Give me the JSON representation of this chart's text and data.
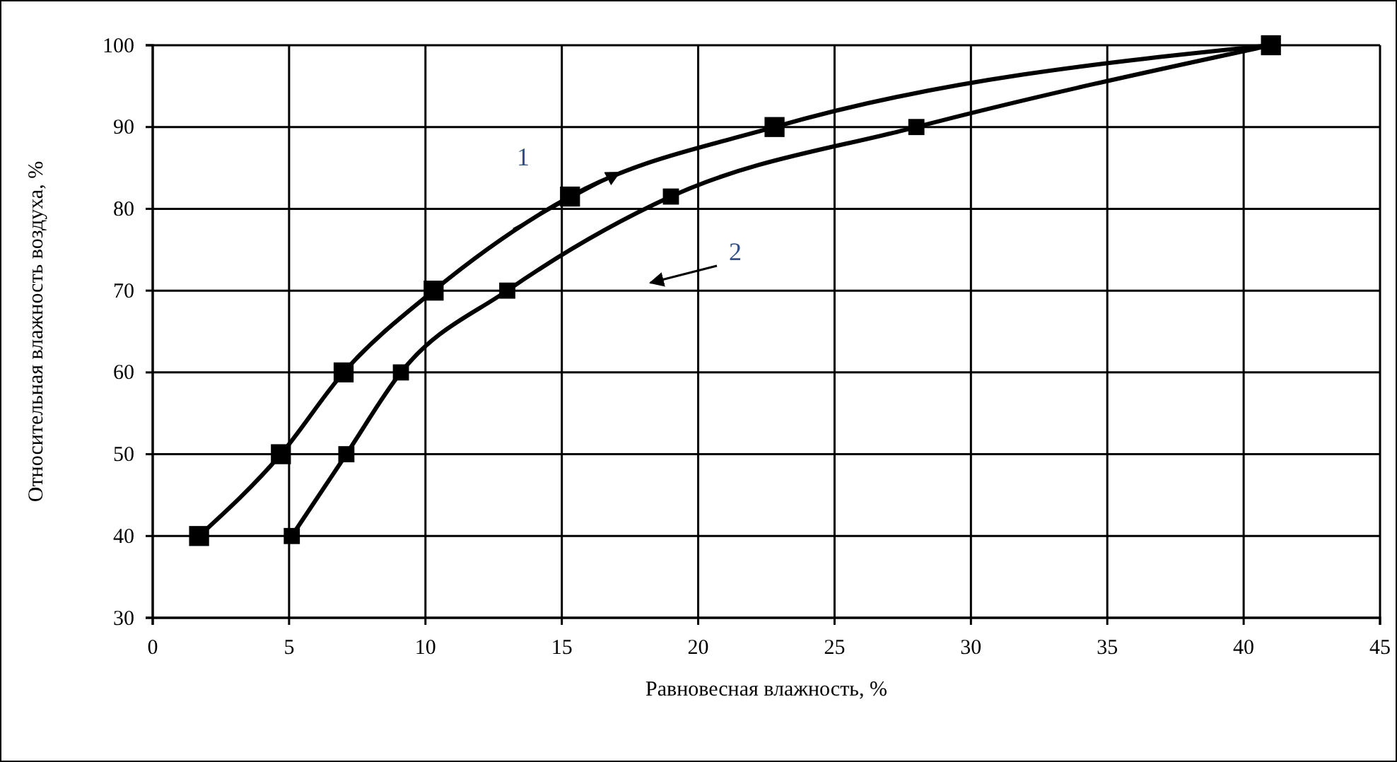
{
  "chart_data": {
    "type": "line",
    "xlabel": "Равновесная влажность, %",
    "ylabel": "Относительная влажность воздуха, %",
    "xlim": [
      0,
      45
    ],
    "xticks": [
      0,
      5,
      10,
      15,
      20,
      25,
      30,
      35,
      40,
      45
    ],
    "ylim": [
      30,
      100
    ],
    "yticks": [
      30,
      40,
      50,
      60,
      70,
      80,
      90,
      100
    ],
    "grid": true,
    "marker": "square",
    "line_style": "solid",
    "series": [
      {
        "color": "#000000",
        "x": [
          1.7,
          4.7,
          7.0,
          10.3,
          15.3,
          22.8,
          41
        ],
        "values": [
          40,
          50,
          60,
          70,
          81.5,
          90,
          100
        ]
      },
      {
        "color": "#000000",
        "x": [
          5.1,
          7.1,
          9.1,
          13.0,
          19.0,
          28.0,
          41
        ],
        "values": [
          40,
          50,
          60,
          70,
          81.5,
          90,
          100
        ]
      }
    ],
    "annotations": [
      "1",
      "2"
    ]
  }
}
